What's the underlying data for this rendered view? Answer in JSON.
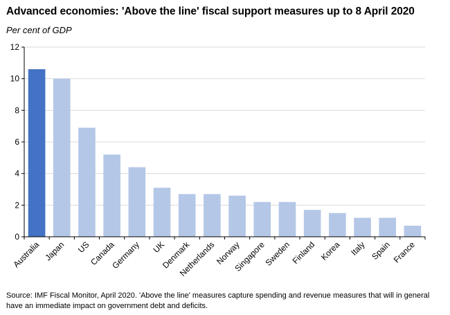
{
  "title": "Advanced economies: 'Above the line' fiscal support measures up to 8 April 2020",
  "subtitle": "Per cent of GDP",
  "source": "Source: IMF Fiscal Monitor, April 2020.  'Above the line' measures capture spending and revenue measures that will in general have an immediate impact on government debt and deficits.",
  "colors": {
    "highlight": "#4472c4",
    "bar": "#b4c7e7",
    "axis": "#000000",
    "grid": "#d9d9d9"
  },
  "chart_data": {
    "type": "bar",
    "title": "Advanced economies: 'Above the line' fiscal support measures up to 8 April 2020",
    "ylabel": "Per cent of GDP",
    "xlabel": "",
    "ylim": [
      0,
      12
    ],
    "yticks": [
      0,
      2,
      4,
      6,
      8,
      10,
      12
    ],
    "grid": true,
    "highlight_category": "Australia",
    "categories": [
      "Australia",
      "Japan",
      "US",
      "Canada",
      "Germany",
      "UK",
      "Denmark",
      "Netherlands",
      "Norway",
      "Singapore",
      "Sweden",
      "Finland",
      "Korea",
      "Italy",
      "Spain",
      "France"
    ],
    "values": [
      10.6,
      10.0,
      6.9,
      5.2,
      4.4,
      3.1,
      2.7,
      2.7,
      2.6,
      2.2,
      2.2,
      1.7,
      1.5,
      1.2,
      1.2,
      0.7
    ]
  }
}
